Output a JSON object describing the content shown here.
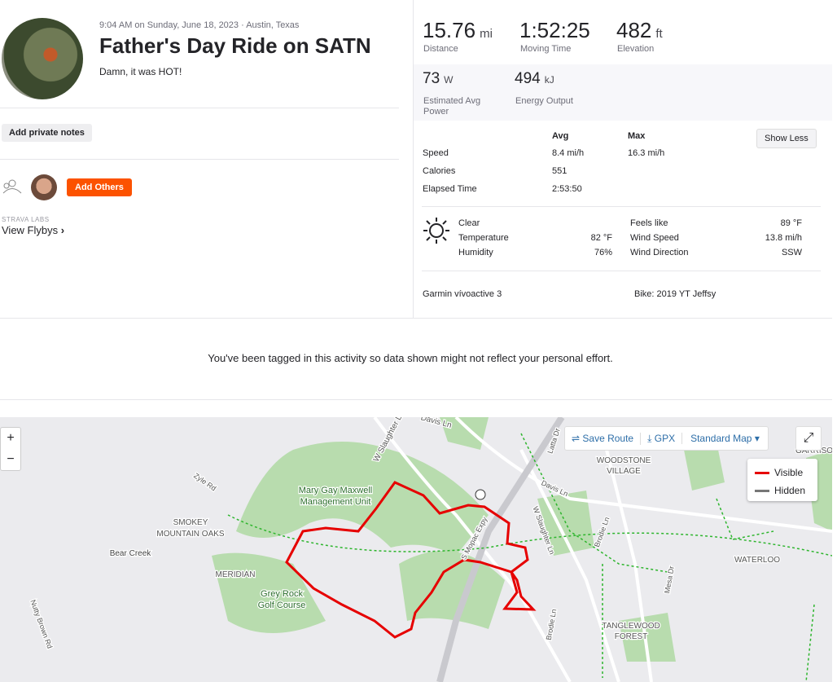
{
  "activity": {
    "datetime": "9:04 AM on Sunday, June 18, 2023 · Austin, Texas",
    "title": "Father's Day Ride on SATN",
    "description": "Damn, it was HOT!"
  },
  "actions": {
    "private_notes": "Add private notes",
    "add_others": "Add Others",
    "labs": "STRAVA LABS",
    "flybys": "View Flybys"
  },
  "stats": {
    "primary": [
      {
        "value": "15.76",
        "unit": "mi",
        "label": "Distance"
      },
      {
        "value": "1:52:25",
        "label": "Moving Time"
      },
      {
        "value": "482",
        "unit": "ft",
        "label": "Elevation"
      }
    ],
    "secondary": [
      {
        "value": "73",
        "unit": "W",
        "label": "Estimated Avg Power"
      },
      {
        "value": "494",
        "unit": "kJ",
        "label": "Energy Output"
      }
    ]
  },
  "details": {
    "avg_header": "Avg",
    "max_header": "Max",
    "toggle": "Show Less",
    "rows": [
      {
        "label": "Speed",
        "avg": "8.4 mi/h",
        "max": "16.3 mi/h"
      },
      {
        "label": "Calories",
        "avg": "551"
      },
      {
        "label": "Elapsed Time",
        "avg": "2:53:50"
      }
    ]
  },
  "weather": {
    "condition": "Clear",
    "left": [
      {
        "label": "Temperature",
        "value": "82 °F"
      },
      {
        "label": "Humidity",
        "value": "76%"
      }
    ],
    "right": [
      {
        "label": "Feels like",
        "value": "89 °F"
      },
      {
        "label": "Wind Speed",
        "value": "13.8 mi/h"
      },
      {
        "label": "Wind Direction",
        "value": "SSW"
      }
    ]
  },
  "gear": {
    "device": "Garmin vívoactive 3",
    "bike": "Bike: 2019 YT Jeffsy"
  },
  "notice": "You've been tagged in this activity so data shown might not reflect your personal effort.",
  "map": {
    "controls": {
      "zoom_in": "+",
      "zoom_out": "−",
      "save_route": "Save Route",
      "gpx": "GPX",
      "map_style": "Standard Map"
    },
    "legend": [
      "Visible",
      "Hidden"
    ],
    "labels": [
      "W Slaughter Ln",
      "Davis Ln",
      "Latta Dr",
      "Zyle Rd",
      "Mary Gay Maxwell",
      "Management Unit",
      "SMOKEY",
      "MOUNTAIN OAKS",
      "Bear Creek",
      "MERIDIAN",
      "Grey Rock",
      "Golf Course",
      "Nutty Brown Rd",
      "S Mopac Expy",
      "W Slaughter Ln",
      "Davis Ln",
      "WOODSTONE",
      "VILLAGE",
      "Brodie Ln",
      "WATERLOO",
      "Brodie Ln",
      "TANGLEWOOD",
      "FOREST",
      "Mesa Dr",
      "GARRISO"
    ]
  }
}
